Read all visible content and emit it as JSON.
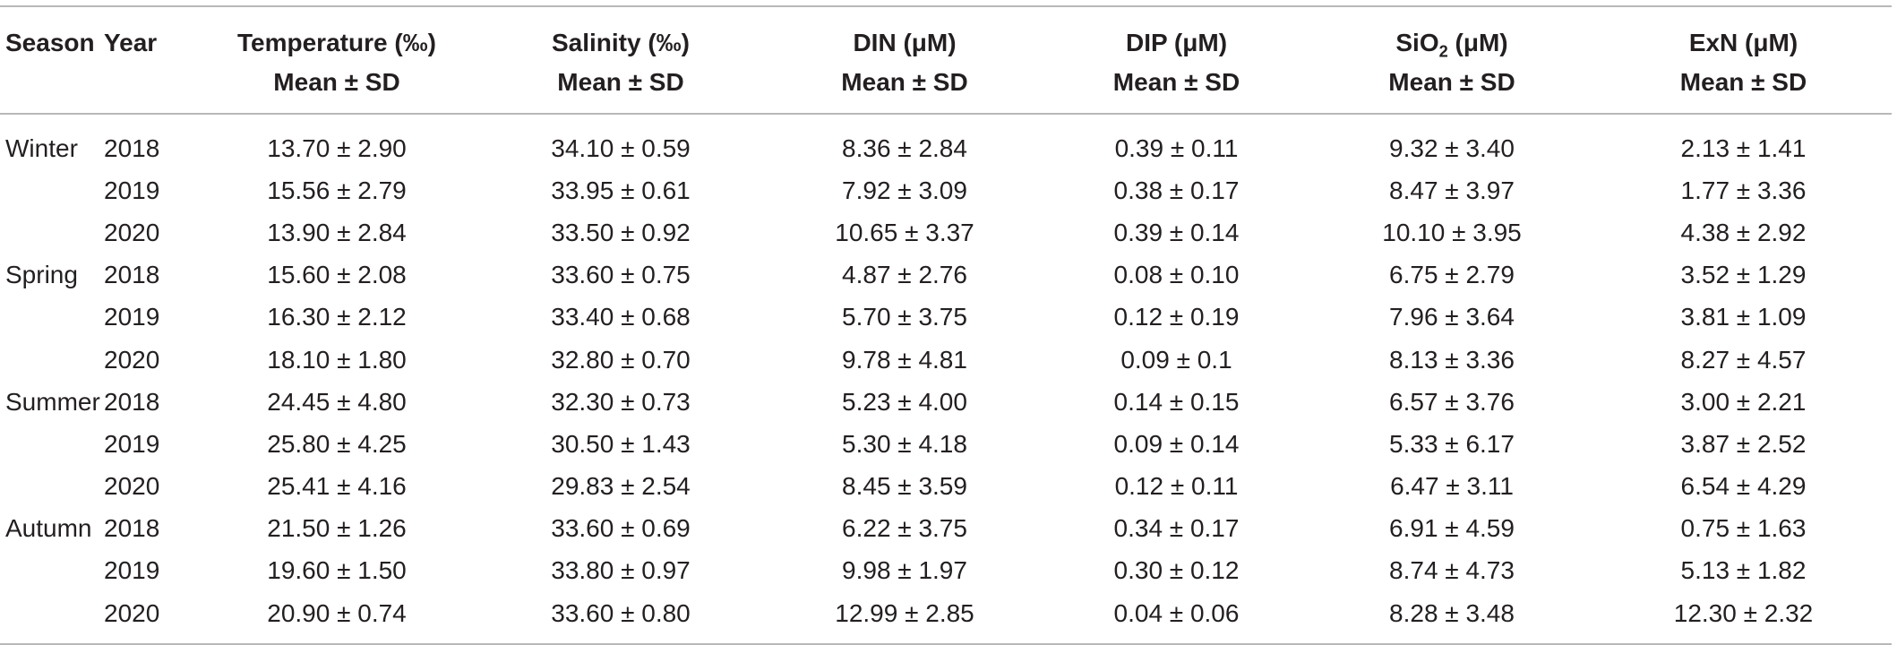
{
  "table": {
    "headers": [
      {
        "line1": "Season",
        "line2": ""
      },
      {
        "line1": "Year",
        "line2": ""
      },
      {
        "line1": "Temperature (‰)",
        "line2": "Mean ± SD"
      },
      {
        "line1": "Salinity (‰)",
        "line2": "Mean ± SD"
      },
      {
        "line1": "DIN (μM)",
        "line2": "Mean ± SD"
      },
      {
        "line1": "DIP (μM)",
        "line2": "Mean ± SD"
      },
      {
        "line1_pre": "SiO",
        "line1_sub": "2",
        "line1_post": " (μM)",
        "line2": "Mean ± SD"
      },
      {
        "line1": "ExN (μM)",
        "line2": "Mean ± SD"
      }
    ],
    "rows": [
      [
        "Winter",
        "2018",
        "13.70 ± 2.90",
        "34.10 ± 0.59",
        "8.36 ± 2.84",
        "0.39 ± 0.11",
        "9.32 ± 3.40",
        "2.13 ± 1.41"
      ],
      [
        "",
        "2019",
        "15.56 ± 2.79",
        "33.95 ± 0.61",
        "7.92 ± 3.09",
        "0.38 ± 0.17",
        "8.47 ± 3.97",
        "1.77 ± 3.36"
      ],
      [
        "",
        "2020",
        "13.90 ± 2.84",
        "33.50 ± 0.92",
        "10.65 ± 3.37",
        "0.39 ± 0.14",
        "10.10 ± 3.95",
        "4.38 ± 2.92"
      ],
      [
        "Spring",
        "2018",
        "15.60 ± 2.08",
        "33.60 ± 0.75",
        "4.87 ± 2.76",
        "0.08 ± 0.10",
        "6.75 ± 2.79",
        "3.52 ± 1.29"
      ],
      [
        "",
        "2019",
        "16.30 ± 2.12",
        "33.40 ± 0.68",
        "5.70 ± 3.75",
        "0.12 ± 0.19",
        "7.96 ± 3.64",
        "3.81 ± 1.09"
      ],
      [
        "",
        "2020",
        "18.10 ± 1.80",
        "32.80 ± 0.70",
        "9.78 ± 4.81",
        "0.09 ± 0.1",
        "8.13 ± 3.36",
        "8.27 ± 4.57"
      ],
      [
        "Summer",
        "2018",
        "24.45 ± 4.80",
        "32.30 ± 0.73",
        "5.23 ± 4.00",
        "0.14 ± 0.15",
        "6.57 ± 3.76",
        "3.00 ± 2.21"
      ],
      [
        "",
        "2019",
        "25.80 ± 4.25",
        "30.50 ± 1.43",
        "5.30 ± 4.18",
        "0.09 ± 0.14",
        "5.33 ± 6.17",
        "3.87 ± 2.52"
      ],
      [
        "",
        "2020",
        "25.41 ± 4.16",
        "29.83 ± 2.54",
        "8.45 ± 3.59",
        "0.12 ± 0.11",
        "6.47 ± 3.11",
        "6.54 ± 4.29"
      ],
      [
        "Autumn",
        "2018",
        "21.50 ± 1.26",
        "33.60 ± 0.69",
        "6.22 ± 3.75",
        "0.34 ± 0.17",
        "6.91 ± 4.59",
        "0.75 ± 1.63"
      ],
      [
        "",
        "2019",
        "19.60 ± 1.50",
        "33.80 ± 0.97",
        "9.98 ± 1.97",
        "0.30 ± 0.12",
        "8.74 ± 4.73",
        "5.13 ± 1.82"
      ],
      [
        "",
        "2020",
        "20.90 ± 0.74",
        "33.60 ± 0.80",
        "12.99 ± 2.85",
        "0.04 ± 0.06",
        "8.28 ± 3.48",
        "12.30 ± 2.32"
      ]
    ]
  }
}
